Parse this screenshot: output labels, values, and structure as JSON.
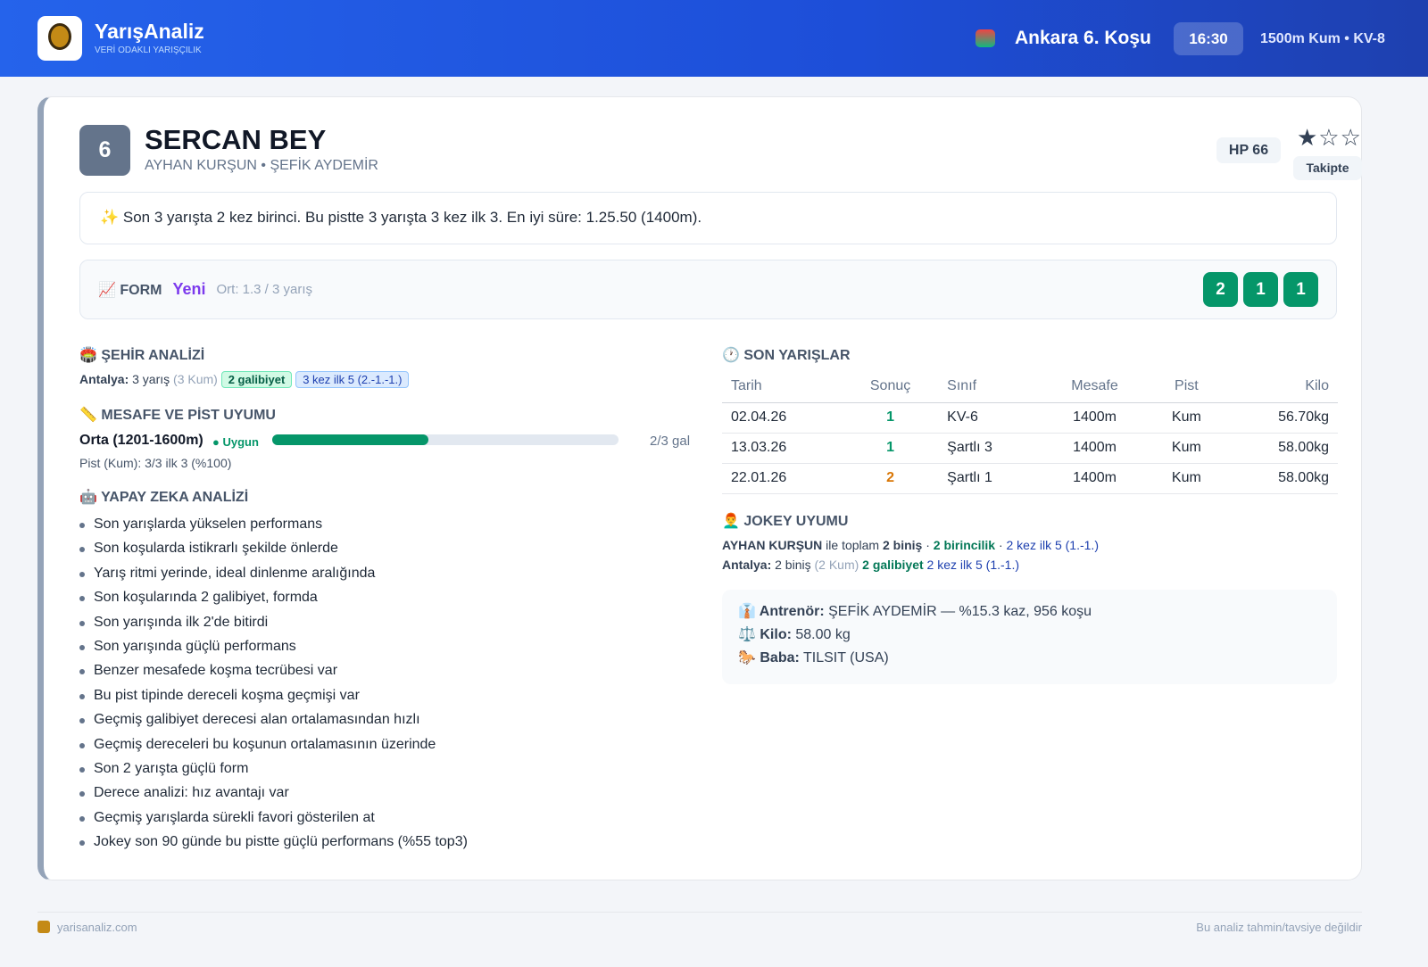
{
  "header": {
    "brand": "YarışAnaliz",
    "tagline": "VERİ ODAKLI YARIŞÇILIK",
    "race": "Ankara 6. Koşu",
    "time": "16:30",
    "info": "1500m Kum • KV-8"
  },
  "horse": {
    "number": "6",
    "name": "SERCAN BEY",
    "connections": "AYHAN KURŞUN • ŞEFİK AYDEMİR",
    "hp": "HP 66",
    "stars": "★☆☆",
    "status": "Takipte"
  },
  "summary": "✨ Son 3 yarışta 2 kez birinci. Bu pistte 3 yarışta 3 kez ilk 3. En iyi süre: 1.25.50 (1400m).",
  "form": {
    "label": "📈 FORM",
    "tag": "Yeni",
    "average": "Ort: 1.3 / 3 yarış",
    "results": [
      "2",
      "1",
      "1"
    ]
  },
  "city": {
    "title": "🏟️ ŞEHİR ANALİZİ",
    "city": "Antalya:",
    "races": "3 yarış",
    "surface": "(3 Kum)",
    "wins": "2 galibiyet",
    "top5": "3 kez ilk 5 (2.-1.-1.)"
  },
  "distance": {
    "title": "📏 MESAFE VE PİST UYUMU",
    "range": "Orta (1201-1600m)",
    "status": "Uygun",
    "ratio": "2/3 gal",
    "track": "Pist (Kum): 3/3 ilk 3 (%100)"
  },
  "ai": {
    "title": "🤖 YAPAY ZEKA ANALİZİ",
    "items": [
      "Son yarışlarda yükselen performans",
      "Son koşularda istikrarlı şekilde önlerde",
      "Yarış ritmi yerinde, ideal dinlenme aralığında",
      "Son koşularında 2 galibiyet, formda",
      "Son yarışında ilk 2'de bitirdi",
      "Son yarışında güçlü performans",
      "Benzer mesafede koşma tecrübesi var",
      "Bu pist tipinde dereceli koşma geçmişi var",
      "Geçmiş galibiyet derecesi alan ortalamasından hızlı",
      "Geçmiş dereceleri bu koşunun ortalamasının üzerinde",
      "Son 2 yarışta güçlü form",
      "Derece analizi: hız avantajı var",
      "Geçmiş yarışlarda sürekli favori gösterilen at",
      "Jokey son 90 günde bu pistte güçlü performans (%55 top3)"
    ]
  },
  "races": {
    "title": "🕐 SON YARIŞLAR",
    "columns": [
      "Tarih",
      "Sonuç",
      "Sınıf",
      "Mesafe",
      "Pist",
      "Kilo"
    ],
    "rows": [
      [
        "02.04.26",
        "1",
        "KV-6",
        "1400m",
        "Kum",
        "56.70kg"
      ],
      [
        "13.03.26",
        "1",
        "Şartlı 3",
        "1400m",
        "Kum",
        "58.00kg"
      ],
      [
        "22.01.26",
        "2",
        "Şartlı 1",
        "1400m",
        "Kum",
        "58.00kg"
      ]
    ]
  },
  "jockey": {
    "title": "👨‍🦰 JOKEY UYUMU",
    "name": "AYHAN KURŞUN",
    "with": "ile toplam",
    "rides": "2 biniş",
    "sep1": "·",
    "wins": "2 birincilik",
    "sep2": "·",
    "top5": "2 kez ilk 5 (1.-1.)",
    "city": "Antalya:",
    "city_rides": "2 biniş",
    "city_surface": "(2 Kum)",
    "city_wins": "2 galibiyet",
    "city_top5": "2 kez ilk 5 (1.-1.)"
  },
  "details": {
    "trainer_label": "👔 Antrenör:",
    "trainer": "ŞEFİK AYDEMİR — %15.3 kaz, 956 koşu",
    "weight_label": "⚖️ Kilo:",
    "weight": "58.00 kg",
    "sire_label": "🐎 Baba:",
    "sire": "TILSIT (USA)"
  },
  "footer": {
    "site": "yarisanaliz.com",
    "disclaimer": "Bu analiz tahmin/tavsiye değildir"
  }
}
